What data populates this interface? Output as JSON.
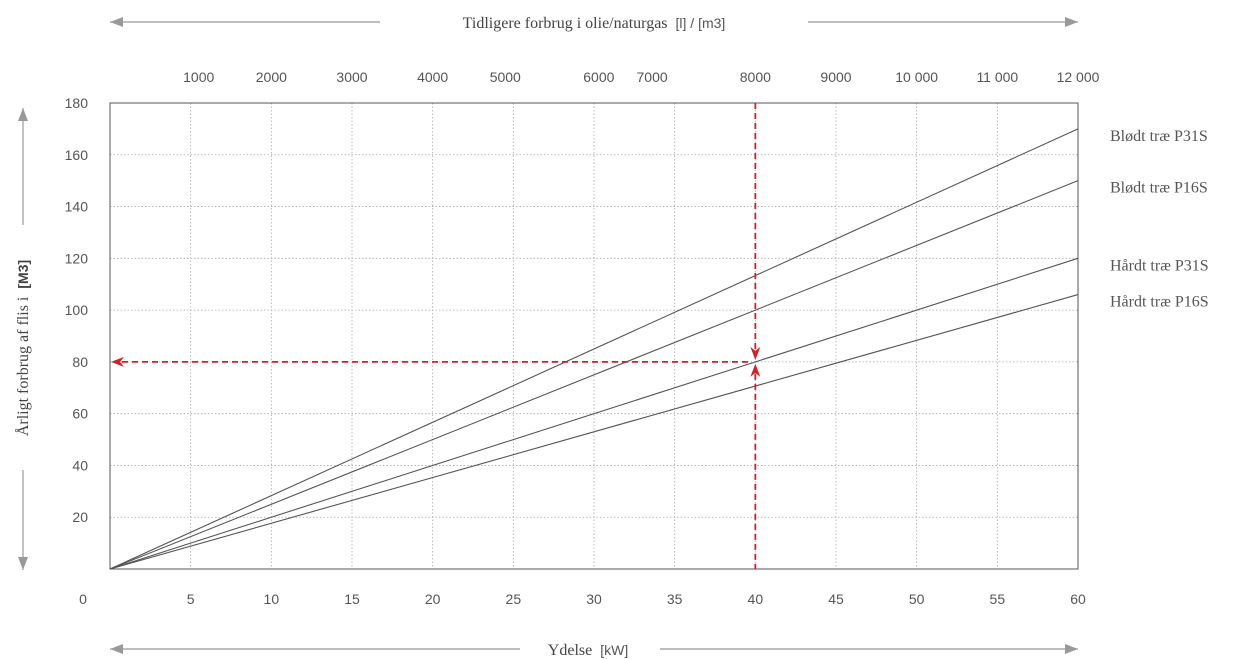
{
  "chart_data": {
    "type": "line",
    "top_axis_title": {
      "text": "Tidligere forbrug i olie/naturgas",
      "unit_part": "[l] / [m3]"
    },
    "bottom_axis_title": {
      "text": "Ydelse",
      "unit_part": "[kW]"
    },
    "left_axis_title": {
      "text": "Årligt forbrug af flis i",
      "bold_part": "[M3]"
    },
    "origin_label": "0",
    "xlim": [
      0,
      60
    ],
    "ylim": [
      0,
      180
    ],
    "x_ticks": [
      5,
      10,
      15,
      20,
      25,
      30,
      35,
      40,
      45,
      50,
      55,
      60
    ],
    "y_ticks": [
      20,
      40,
      60,
      80,
      100,
      120,
      140,
      160,
      180
    ],
    "top_ticks": [
      {
        "label": "1000",
        "x": 5.5
      },
      {
        "label": "2000",
        "x": 10
      },
      {
        "label": "3000",
        "x": 15
      },
      {
        "label": "4000",
        "x": 20
      },
      {
        "label": "5000",
        "x": 24.5
      },
      {
        "label": "6000",
        "x": 30.3
      },
      {
        "label": "7000",
        "x": 33.6
      },
      {
        "label": "8000",
        "x": 40
      },
      {
        "label": "9000",
        "x": 45
      },
      {
        "label": "10 000",
        "x": 50
      },
      {
        "label": "11 000",
        "x": 55
      },
      {
        "label": "12 000",
        "x": 60
      }
    ],
    "series": [
      {
        "name": "Blødt træ P31S",
        "x": [
          0,
          60
        ],
        "y": [
          0,
          170
        ],
        "color": "#555555"
      },
      {
        "name": "Blødt træ P16S",
        "x": [
          0,
          60
        ],
        "y": [
          0,
          150
        ],
        "color": "#555555"
      },
      {
        "name": "Hårdt træ P31S",
        "x": [
          0,
          60
        ],
        "y": [
          0,
          120
        ],
        "color": "#555555"
      },
      {
        "name": "Hårdt træ P16S",
        "x": [
          0,
          60
        ],
        "y": [
          0,
          106
        ],
        "color": "#555555"
      }
    ],
    "annotation": {
      "x": 40,
      "y": 80,
      "color": "#d0202a"
    },
    "grid": true
  }
}
